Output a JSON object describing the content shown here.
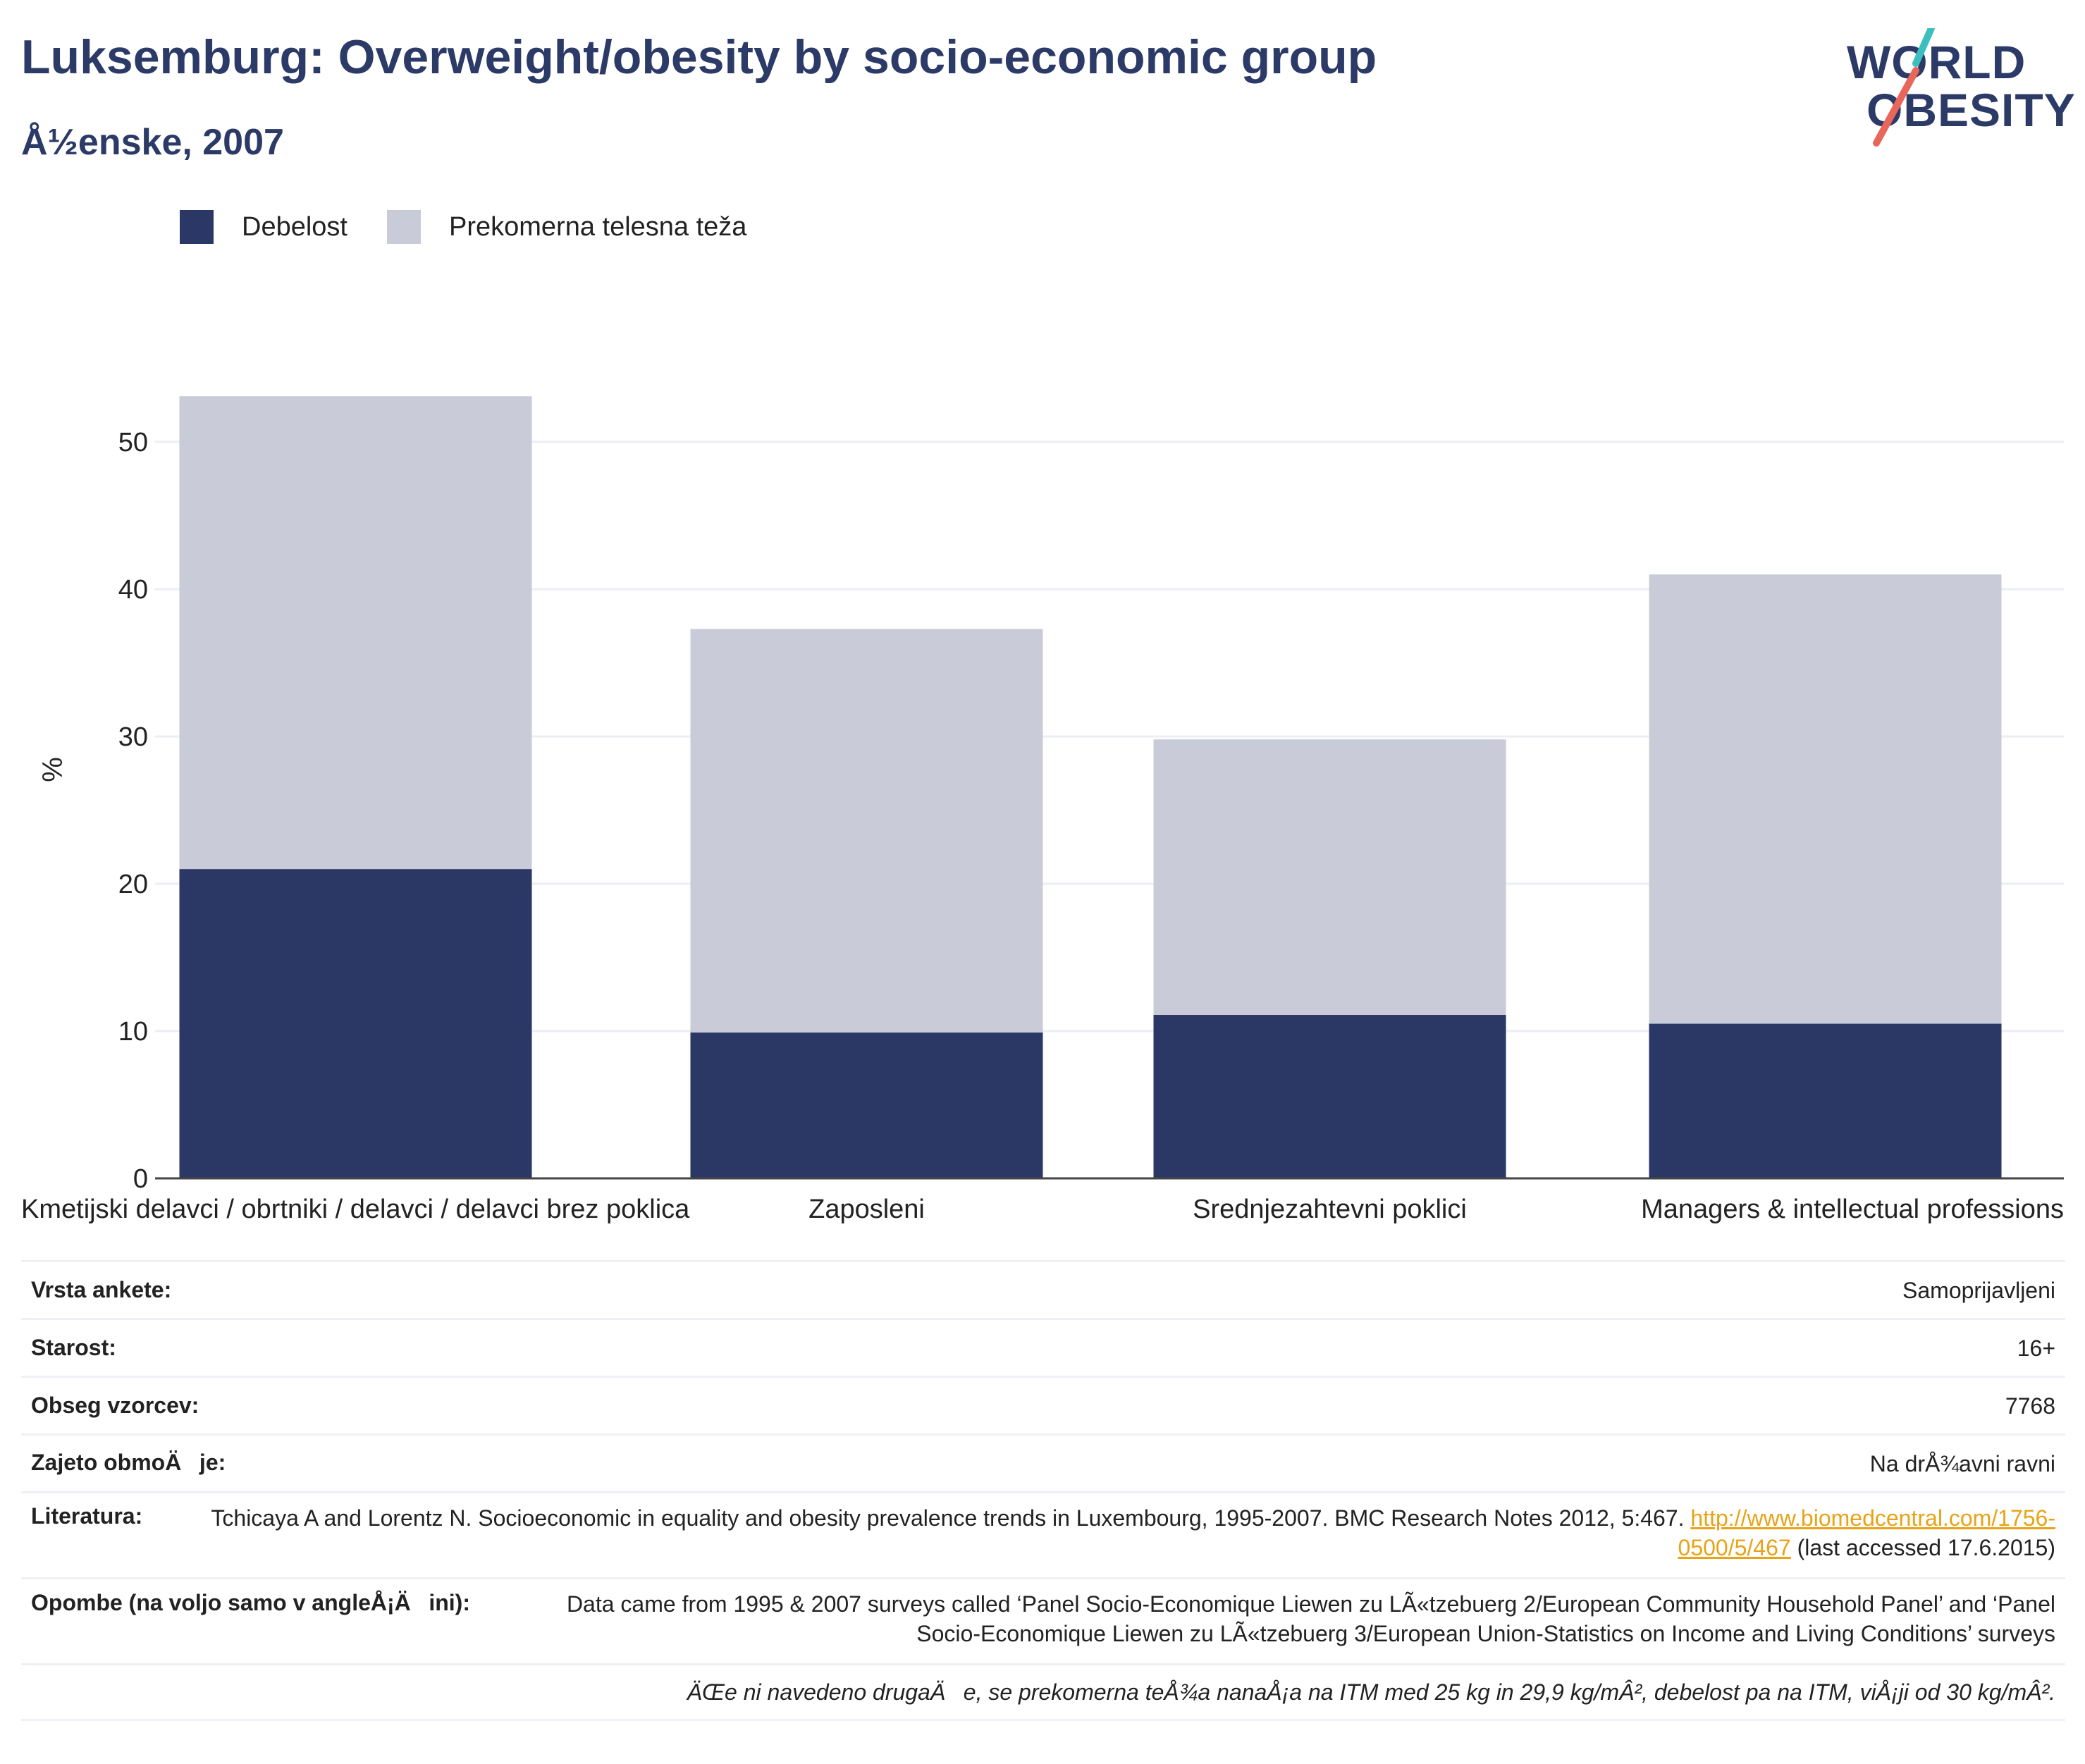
{
  "header": {
    "title": "Luksemburg: Overweight/obesity by socio-economic group",
    "subtitle": "Å½enske, 2007"
  },
  "logo": {
    "line1": "WORLD",
    "line2": "OBESITY",
    "accent_teal": "#3bbfbf",
    "accent_coral": "#e8675a"
  },
  "colors": {
    "obesity": "#2b3765",
    "overweight": "#c9ccd8",
    "grid": "#eceef3",
    "axis": "#444444"
  },
  "chart_data": {
    "type": "bar",
    "stacked": true,
    "categories": [
      "Kmetijski delavci / obrtniki / delavci / delavci brez poklica",
      "Zaposleni",
      "Srednjezahtevni poklici",
      "Managers & intellectual professions"
    ],
    "series": [
      {
        "name": "Debelost",
        "values": [
          21.0,
          9.9,
          11.1,
          10.5
        ]
      },
      {
        "name": "Prekomerna telesna teža",
        "values": [
          32.1,
          27.4,
          18.7,
          30.5
        ]
      }
    ],
    "ylabel": "%",
    "xlabel": "",
    "ylim": [
      0,
      55
    ],
    "yticks": [
      0,
      10,
      20,
      30,
      40,
      50
    ],
    "grid": true,
    "legend": "top-left"
  },
  "info_table": [
    {
      "key": "Vrsta ankete:",
      "value": "Samoprijavljeni"
    },
    {
      "key": "Starost:",
      "value": "16+"
    },
    {
      "key": "Obseg vzorcev:",
      "value": "7768"
    },
    {
      "key": "Zajeto obmoÄje:",
      "value": "Na drÅ¾avni ravni"
    },
    {
      "key": "Literatura:",
      "value_before": "Tchicaya A and Lorentz N. Socioeconomic in equality and obesity prevalence trends in Luxembourg, 1995-2007. BMC Research Notes 2012, 5:467. ",
      "link": "http://www.biomedcentral.com/1756-0500/5/467",
      "value_after": " (last accessed 17.6.2015)"
    },
    {
      "key": "Opombe (na voljo samo v angleÅ¡Äini):",
      "value": "Data came from 1995 & 2007 surveys called ‘Panel Socio-Economique Liewen zu LÃ«tzebuerg 2/European Community Household Panel’ and ‘Panel Socio-Economique Liewen zu LÃ«tzebuerg 3/European Union-Statistics on Income and Living Conditions’ surveys"
    },
    {
      "key": "",
      "value": "ÄŒe ni navedeno drugaÄe, se prekomerna teÅ¾a nanaÅ¡a na ITM med 25 kg in 29,9 kg/mÂ², debelost pa na ITM, viÅ¡ji od 30 kg/mÂ²."
    }
  ]
}
